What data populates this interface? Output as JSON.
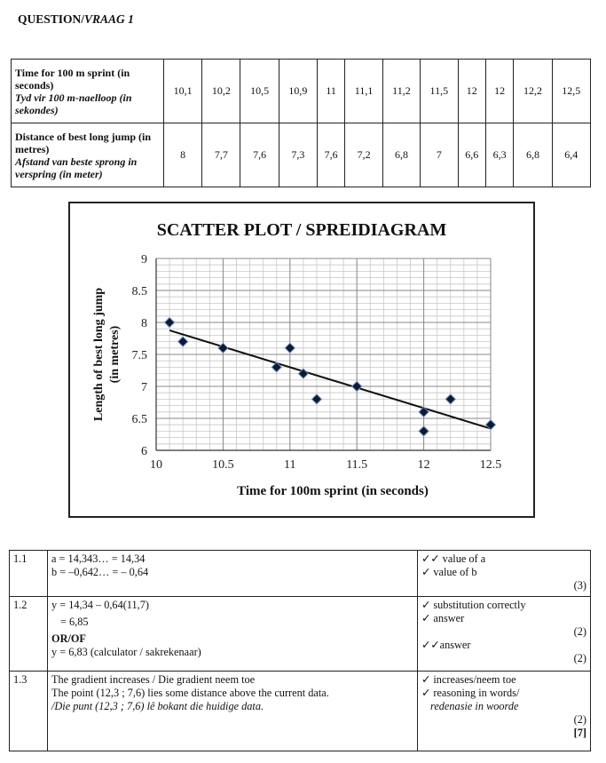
{
  "heading": {
    "prefix": "QUESTION/",
    "suffix": "VRAAG 1"
  },
  "data_table": {
    "row1": {
      "label_en": "Time for 100 m sprint (in seconds)",
      "label_af": "Tyd vir 100 m-naelloop (in sekondes)",
      "values": [
        "10,1",
        "10,2",
        "10,5",
        "10,9",
        "11",
        "11,1",
        "11,2",
        "11,5",
        "12",
        "12",
        "12,2",
        "12,5"
      ]
    },
    "row2": {
      "label_en": "Distance of best long jump (in metres)",
      "label_af": "Afstand van beste sprong in verspring (in meter)",
      "values": [
        "8",
        "7,7",
        "7,6",
        "7,3",
        "7,6",
        "7,2",
        "6,8",
        "7",
        "6,6",
        "6,3",
        "6,8",
        "6,4"
      ]
    }
  },
  "chart_data": {
    "type": "scatter",
    "title": "SCATTER PLOT / SPREIDIAGRAM",
    "xlabel": "Time for 100m sprint (in seconds)",
    "ylabel_line1": "Length of best long jump",
    "ylabel_line2": "(in metres)",
    "xlim": [
      10,
      12.5
    ],
    "ylim": [
      6,
      9
    ],
    "xticks": [
      "10",
      "10.5",
      "11",
      "11.5",
      "12",
      "12.5"
    ],
    "yticks": [
      "6",
      "6.5",
      "7",
      "7.5",
      "8",
      "8.5",
      "9"
    ],
    "grid": true,
    "points": [
      {
        "x": 10.1,
        "y": 8
      },
      {
        "x": 10.2,
        "y": 7.7
      },
      {
        "x": 10.5,
        "y": 7.6
      },
      {
        "x": 10.9,
        "y": 7.3
      },
      {
        "x": 11,
        "y": 7.6
      },
      {
        "x": 11.1,
        "y": 7.2
      },
      {
        "x": 11.2,
        "y": 6.8
      },
      {
        "x": 11.5,
        "y": 7
      },
      {
        "x": 12,
        "y": 6.6
      },
      {
        "x": 12,
        "y": 6.3
      },
      {
        "x": 12.2,
        "y": 6.8
      },
      {
        "x": 12.5,
        "y": 6.4
      }
    ],
    "trendline": {
      "a": 14.34,
      "b": -0.64,
      "x_from": 10.1,
      "x_to": 12.5
    }
  },
  "answers": [
    {
      "num": "1.1",
      "lines": [
        "a = 14,343… = 14,34",
        "b = –0,642… = – 0,64"
      ],
      "marks_lines": [
        "✓✓ value of a",
        "✓ value of b"
      ],
      "marks_total": "(3)"
    },
    {
      "num": "1.2",
      "lines": [
        "y = 14,34 – 0,64(11,7)",
        "= 6,85",
        "OR/OF",
        "y = 6,83  (calculator / sakrekenaar)"
      ],
      "marks_lines": [
        "✓ substitution correctly",
        "✓ answer",
        "(2)",
        "✓✓answer"
      ],
      "marks_total": "(2)"
    },
    {
      "num": "1.3",
      "lines": [
        "The gradient increases / Die gradient neem toe",
        "The point (12,3 ; 7,6) lies some distance above the current data.",
        "/Die punt (12,3 ; 7,6) lê bokant die huidige data."
      ],
      "marks_lines": [
        "✓ increases/neem toe",
        "✓ reasoning in words/",
        "redenasie  in woorde"
      ],
      "marks_total": "(2)",
      "grand_total": "[7]"
    }
  ]
}
